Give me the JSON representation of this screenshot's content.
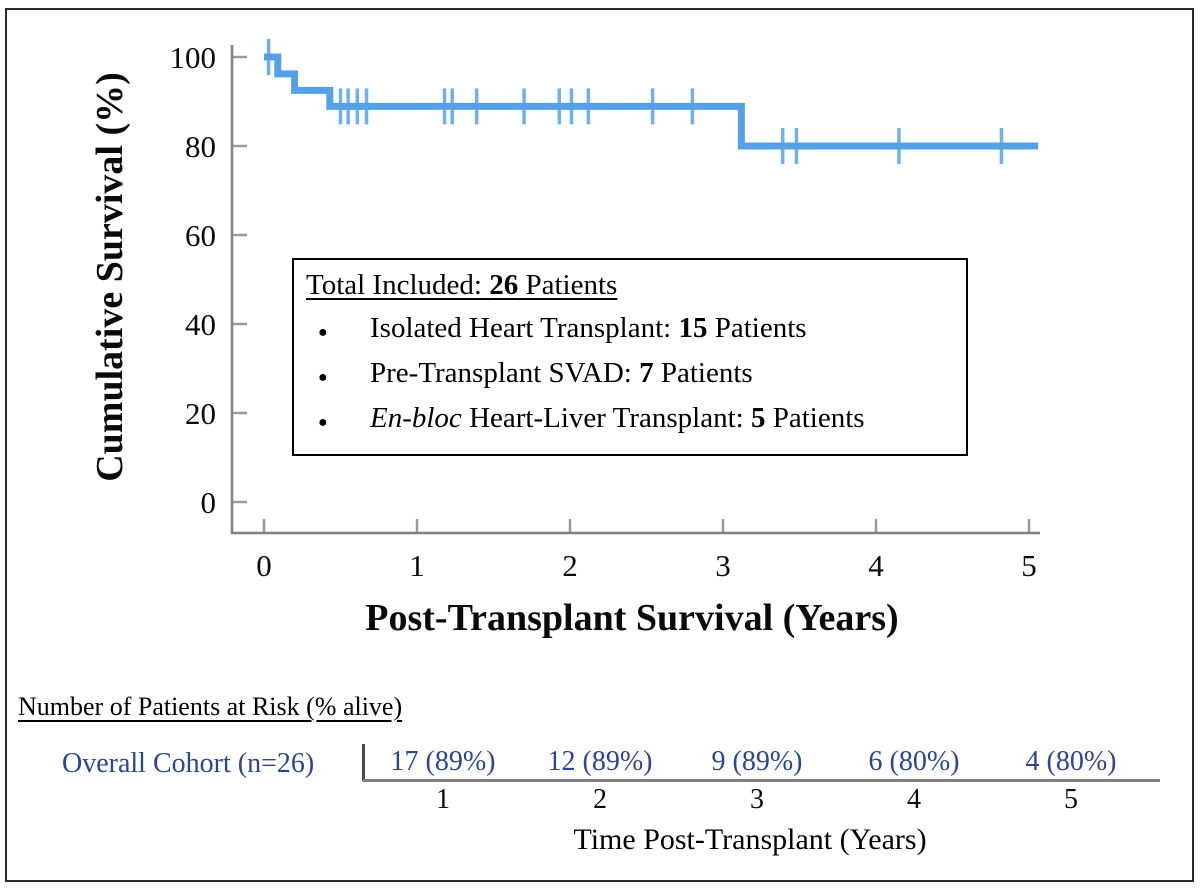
{
  "figure": {
    "background": "#ffffff",
    "border_color": "#2a2a2a"
  },
  "colors": {
    "curve": "#54a1e8",
    "censor_mark": "#6db1f0",
    "axis_line": "#808080",
    "axis_tick": "#999999",
    "risk_text": "#2a4592",
    "text": "#000000"
  },
  "chart_data": {
    "type": "line",
    "subtype": "kaplan-meier-step",
    "title": "",
    "xlabel": "Post-Transplant Survival (Years)",
    "ylabel": "Cumulative Survival (%)",
    "x_ticks": [
      0,
      1,
      2,
      3,
      4,
      5
    ],
    "y_ticks": [
      0,
      20,
      40,
      60,
      80,
      100
    ],
    "xlim": [
      0,
      5.3
    ],
    "ylim": [
      0,
      105
    ],
    "grid": false,
    "legend_position": "none",
    "series": [
      {
        "name": "Overall Cohort (n=26)",
        "color": "#54a1e8",
        "steps": [
          {
            "time": 0.0,
            "survival_pct": 100.0
          },
          {
            "time": 0.09,
            "survival_pct": 96.2
          },
          {
            "time": 0.2,
            "survival_pct": 92.5
          },
          {
            "time": 0.43,
            "survival_pct": 88.9
          },
          {
            "time": 3.12,
            "survival_pct": 80.0
          }
        ],
        "end_time": 5.06,
        "censor_marks": [
          {
            "time": 0.03,
            "survival_pct": 100.0
          },
          {
            "time": 0.5,
            "survival_pct": 88.9
          },
          {
            "time": 0.55,
            "survival_pct": 88.9
          },
          {
            "time": 0.61,
            "survival_pct": 88.9
          },
          {
            "time": 0.67,
            "survival_pct": 88.9
          },
          {
            "time": 1.18,
            "survival_pct": 88.9
          },
          {
            "time": 1.23,
            "survival_pct": 88.9
          },
          {
            "time": 1.39,
            "survival_pct": 88.9
          },
          {
            "time": 1.7,
            "survival_pct": 88.9
          },
          {
            "time": 1.93,
            "survival_pct": 88.9
          },
          {
            "time": 2.01,
            "survival_pct": 88.9
          },
          {
            "time": 2.12,
            "survival_pct": 88.9
          },
          {
            "time": 2.54,
            "survival_pct": 88.9
          },
          {
            "time": 2.8,
            "survival_pct": 88.9
          },
          {
            "time": 3.39,
            "survival_pct": 80.0
          },
          {
            "time": 3.48,
            "survival_pct": 80.0
          },
          {
            "time": 4.15,
            "survival_pct": 80.0
          },
          {
            "time": 4.82,
            "survival_pct": 80.0
          }
        ]
      }
    ]
  },
  "legend_box": {
    "bullet": "●",
    "title_pre": "Total Included: ",
    "title_num": "26",
    "title_post": " Patients",
    "items": [
      {
        "italic": "",
        "pre": "Isolated Heart Transplant: ",
        "num": "15",
        "post": " Patients"
      },
      {
        "italic": "",
        "pre": "Pre-Transplant SVAD: ",
        "num": "7",
        "post": " Patients"
      },
      {
        "italic": "En-bloc",
        "pre": " Heart-Liver Transplant: ",
        "num": "5",
        "post": " Patients"
      }
    ]
  },
  "risk_table": {
    "heading": "Number of Patients at Risk (% alive)",
    "row_label": "Overall Cohort (n=26)",
    "label_color": "#2a4592",
    "time_ticks": [
      "1",
      "2",
      "3",
      "4",
      "5"
    ],
    "values": [
      "17 (89%)",
      "12 (89%)",
      "9 (89%)",
      "6 (80%)",
      "4 (80%)"
    ],
    "axis_label": "Time Post-Transplant (Years)"
  }
}
